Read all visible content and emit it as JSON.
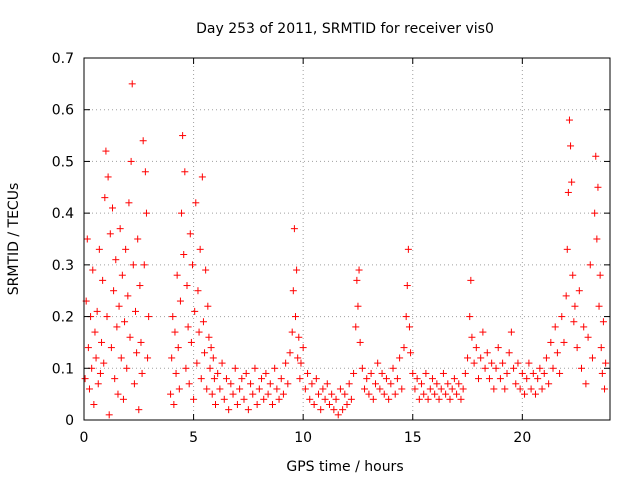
{
  "chart_data": {
    "type": "scatter",
    "title": "Day 253 of 2011, SRMTID for receiver vis0",
    "xlabel": "GPS time / hours",
    "ylabel": "SRMTID / TECUs",
    "xlim": [
      0,
      24
    ],
    "ylim": [
      0,
      0.7
    ],
    "x_ticks": [
      0,
      5,
      10,
      15,
      20
    ],
    "y_ticks": [
      0,
      0.1,
      0.2,
      0.3,
      0.4,
      0.5,
      0.6,
      0.7
    ],
    "x_tick_labels": [
      "0",
      "5",
      "10",
      "15",
      "20"
    ],
    "y_tick_labels": [
      "0",
      "0.1",
      "0.2",
      "0.3",
      "0.4",
      "0.5",
      "0.6",
      "0.7"
    ],
    "grid": true,
    "marker": "plus",
    "series": [
      {
        "name": "vis0",
        "color": "#ff0000",
        "points": [
          [
            0.05,
            0.08
          ],
          [
            0.1,
            0.23
          ],
          [
            0.15,
            0.35
          ],
          [
            0.2,
            0.14
          ],
          [
            0.25,
            0.06
          ],
          [
            0.3,
            0.2
          ],
          [
            0.35,
            0.1
          ],
          [
            0.4,
            0.29
          ],
          [
            0.45,
            0.03
          ],
          [
            0.5,
            0.17
          ],
          [
            0.55,
            0.12
          ],
          [
            0.6,
            0.21
          ],
          [
            0.65,
            0.07
          ],
          [
            0.7,
            0.33
          ],
          [
            0.75,
            0.09
          ],
          [
            0.8,
            0.15
          ],
          [
            0.85,
            0.27
          ],
          [
            0.9,
            0.11
          ],
          [
            0.95,
            0.43
          ],
          [
            1.0,
            0.52
          ],
          [
            1.05,
            0.2
          ],
          [
            1.1,
            0.47
          ],
          [
            1.15,
            0.01
          ],
          [
            1.2,
            0.36
          ],
          [
            1.25,
            0.14
          ],
          [
            1.3,
            0.41
          ],
          [
            1.35,
            0.25
          ],
          [
            1.4,
            0.08
          ],
          [
            1.45,
            0.31
          ],
          [
            1.5,
            0.18
          ],
          [
            1.55,
            0.05
          ],
          [
            1.6,
            0.22
          ],
          [
            1.65,
            0.37
          ],
          [
            1.7,
            0.12
          ],
          [
            1.75,
            0.28
          ],
          [
            1.8,
            0.04
          ],
          [
            1.85,
            0.19
          ],
          [
            1.9,
            0.33
          ],
          [
            1.95,
            0.1
          ],
          [
            2.0,
            0.24
          ],
          [
            2.05,
            0.42
          ],
          [
            2.1,
            0.16
          ],
          [
            2.15,
            0.5
          ],
          [
            2.2,
            0.65
          ],
          [
            2.25,
            0.3
          ],
          [
            2.3,
            0.07
          ],
          [
            2.35,
            0.21
          ],
          [
            2.4,
            0.13
          ],
          [
            2.45,
            0.35
          ],
          [
            2.5,
            0.02
          ],
          [
            2.55,
            0.26
          ],
          [
            2.6,
            0.15
          ],
          [
            2.65,
            0.09
          ],
          [
            2.7,
            0.54
          ],
          [
            2.75,
            0.3
          ],
          [
            2.8,
            0.48
          ],
          [
            2.85,
            0.4
          ],
          [
            2.9,
            0.12
          ],
          [
            2.95,
            0.2
          ],
          [
            3.95,
            0.05
          ],
          [
            4.0,
            0.12
          ],
          [
            4.05,
            0.2
          ],
          [
            4.1,
            0.03
          ],
          [
            4.15,
            0.17
          ],
          [
            4.2,
            0.09
          ],
          [
            4.25,
            0.28
          ],
          [
            4.3,
            0.14
          ],
          [
            4.35,
            0.06
          ],
          [
            4.4,
            0.23
          ],
          [
            4.45,
            0.4
          ],
          [
            4.5,
            0.55
          ],
          [
            4.55,
            0.32
          ],
          [
            4.6,
            0.48
          ],
          [
            4.65,
            0.1
          ],
          [
            4.7,
            0.26
          ],
          [
            4.75,
            0.18
          ],
          [
            4.8,
            0.07
          ],
          [
            4.85,
            0.36
          ],
          [
            4.9,
            0.15
          ],
          [
            4.95,
            0.3
          ],
          [
            5.0,
            0.04
          ],
          [
            5.05,
            0.21
          ],
          [
            5.1,
            0.42
          ],
          [
            5.15,
            0.11
          ],
          [
            5.2,
            0.25
          ],
          [
            5.25,
            0.17
          ],
          [
            5.3,
            0.33
          ],
          [
            5.35,
            0.08
          ],
          [
            5.4,
            0.47
          ],
          [
            5.45,
            0.19
          ],
          [
            5.5,
            0.13
          ],
          [
            5.55,
            0.29
          ],
          [
            5.6,
            0.06
          ],
          [
            5.65,
            0.22
          ],
          [
            5.7,
            0.16
          ],
          [
            5.75,
            0.1
          ],
          [
            5.8,
            0.14
          ],
          [
            5.85,
            0.05
          ],
          [
            5.9,
            0.12
          ],
          [
            5.95,
            0.08
          ],
          [
            6.0,
            0.03
          ],
          [
            6.1,
            0.09
          ],
          [
            6.2,
            0.06
          ],
          [
            6.3,
            0.11
          ],
          [
            6.4,
            0.04
          ],
          [
            6.5,
            0.08
          ],
          [
            6.6,
            0.02
          ],
          [
            6.7,
            0.07
          ],
          [
            6.8,
            0.05
          ],
          [
            6.9,
            0.1
          ],
          [
            7.0,
            0.03
          ],
          [
            7.1,
            0.06
          ],
          [
            7.2,
            0.08
          ],
          [
            7.3,
            0.04
          ],
          [
            7.4,
            0.09
          ],
          [
            7.5,
            0.02
          ],
          [
            7.6,
            0.07
          ],
          [
            7.7,
            0.05
          ],
          [
            7.8,
            0.1
          ],
          [
            7.9,
            0.03
          ],
          [
            8.0,
            0.06
          ],
          [
            8.1,
            0.08
          ],
          [
            8.2,
            0.04
          ],
          [
            8.3,
            0.09
          ],
          [
            8.4,
            0.05
          ],
          [
            8.5,
            0.07
          ],
          [
            8.6,
            0.03
          ],
          [
            8.7,
            0.1
          ],
          [
            8.8,
            0.06
          ],
          [
            8.9,
            0.04
          ],
          [
            9.0,
            0.08
          ],
          [
            9.1,
            0.05
          ],
          [
            9.2,
            0.11
          ],
          [
            9.3,
            0.07
          ],
          [
            9.4,
            0.13
          ],
          [
            9.5,
            0.17
          ],
          [
            9.55,
            0.25
          ],
          [
            9.6,
            0.37
          ],
          [
            9.65,
            0.2
          ],
          [
            9.7,
            0.29
          ],
          [
            9.75,
            0.12
          ],
          [
            9.8,
            0.16
          ],
          [
            9.85,
            0.08
          ],
          [
            9.9,
            0.11
          ],
          [
            10.0,
            0.14
          ],
          [
            10.1,
            0.06
          ],
          [
            10.2,
            0.09
          ],
          [
            10.3,
            0.04
          ],
          [
            10.4,
            0.07
          ],
          [
            10.5,
            0.03
          ],
          [
            10.6,
            0.08
          ],
          [
            10.7,
            0.05
          ],
          [
            10.8,
            0.02
          ],
          [
            10.9,
            0.06
          ],
          [
            11.0,
            0.04
          ],
          [
            11.1,
            0.07
          ],
          [
            11.2,
            0.03
          ],
          [
            11.3,
            0.05
          ],
          [
            11.4,
            0.02
          ],
          [
            11.5,
            0.04
          ],
          [
            11.6,
            0.01
          ],
          [
            11.7,
            0.06
          ],
          [
            11.8,
            0.02
          ],
          [
            11.9,
            0.05
          ],
          [
            12.0,
            0.03
          ],
          [
            12.1,
            0.07
          ],
          [
            12.2,
            0.04
          ],
          [
            12.3,
            0.09
          ],
          [
            12.4,
            0.18
          ],
          [
            12.45,
            0.27
          ],
          [
            12.5,
            0.22
          ],
          [
            12.55,
            0.29
          ],
          [
            12.6,
            0.15
          ],
          [
            12.7,
            0.1
          ],
          [
            12.8,
            0.06
          ],
          [
            12.9,
            0.08
          ],
          [
            13.0,
            0.05
          ],
          [
            13.1,
            0.09
          ],
          [
            13.2,
            0.04
          ],
          [
            13.3,
            0.07
          ],
          [
            13.4,
            0.11
          ],
          [
            13.5,
            0.06
          ],
          [
            13.6,
            0.09
          ],
          [
            13.7,
            0.05
          ],
          [
            13.8,
            0.08
          ],
          [
            13.9,
            0.04
          ],
          [
            14.0,
            0.07
          ],
          [
            14.1,
            0.1
          ],
          [
            14.2,
            0.05
          ],
          [
            14.3,
            0.08
          ],
          [
            14.4,
            0.12
          ],
          [
            14.5,
            0.06
          ],
          [
            14.6,
            0.14
          ],
          [
            14.7,
            0.2
          ],
          [
            14.75,
            0.26
          ],
          [
            14.8,
            0.33
          ],
          [
            14.85,
            0.18
          ],
          [
            14.9,
            0.13
          ],
          [
            15.0,
            0.09
          ],
          [
            15.1,
            0.06
          ],
          [
            15.2,
            0.08
          ],
          [
            15.3,
            0.04
          ],
          [
            15.4,
            0.07
          ],
          [
            15.5,
            0.05
          ],
          [
            15.6,
            0.09
          ],
          [
            15.7,
            0.04
          ],
          [
            15.8,
            0.06
          ],
          [
            15.9,
            0.08
          ],
          [
            16.0,
            0.05
          ],
          [
            16.1,
            0.07
          ],
          [
            16.2,
            0.04
          ],
          [
            16.3,
            0.06
          ],
          [
            16.4,
            0.09
          ],
          [
            16.5,
            0.05
          ],
          [
            16.6,
            0.07
          ],
          [
            16.7,
            0.04
          ],
          [
            16.8,
            0.06
          ],
          [
            16.9,
            0.08
          ],
          [
            17.0,
            0.05
          ],
          [
            17.1,
            0.07
          ],
          [
            17.2,
            0.04
          ],
          [
            17.3,
            0.06
          ],
          [
            17.4,
            0.09
          ],
          [
            17.5,
            0.12
          ],
          [
            17.6,
            0.2
          ],
          [
            17.65,
            0.27
          ],
          [
            17.7,
            0.16
          ],
          [
            17.8,
            0.11
          ],
          [
            17.9,
            0.14
          ],
          [
            18.0,
            0.08
          ],
          [
            18.1,
            0.12
          ],
          [
            18.2,
            0.17
          ],
          [
            18.3,
            0.1
          ],
          [
            18.4,
            0.13
          ],
          [
            18.5,
            0.08
          ],
          [
            18.6,
            0.11
          ],
          [
            18.7,
            0.06
          ],
          [
            18.8,
            0.1
          ],
          [
            18.9,
            0.14
          ],
          [
            19.0,
            0.08
          ],
          [
            19.1,
            0.11
          ],
          [
            19.2,
            0.06
          ],
          [
            19.3,
            0.09
          ],
          [
            19.4,
            0.13
          ],
          [
            19.5,
            0.17
          ],
          [
            19.6,
            0.1
          ],
          [
            19.7,
            0.07
          ],
          [
            19.8,
            0.11
          ],
          [
            19.9,
            0.06
          ],
          [
            20.0,
            0.09
          ],
          [
            20.1,
            0.05
          ],
          [
            20.2,
            0.08
          ],
          [
            20.3,
            0.11
          ],
          [
            20.4,
            0.06
          ],
          [
            20.5,
            0.09
          ],
          [
            20.6,
            0.05
          ],
          [
            20.7,
            0.08
          ],
          [
            20.8,
            0.1
          ],
          [
            20.9,
            0.06
          ],
          [
            21.0,
            0.09
          ],
          [
            21.1,
            0.12
          ],
          [
            21.2,
            0.07
          ],
          [
            21.3,
            0.15
          ],
          [
            21.4,
            0.1
          ],
          [
            21.5,
            0.18
          ],
          [
            21.6,
            0.13
          ],
          [
            21.7,
            0.09
          ],
          [
            21.8,
            0.2
          ],
          [
            21.9,
            0.15
          ],
          [
            22.0,
            0.24
          ],
          [
            22.05,
            0.33
          ],
          [
            22.1,
            0.44
          ],
          [
            22.15,
            0.58
          ],
          [
            22.2,
            0.53
          ],
          [
            22.25,
            0.46
          ],
          [
            22.3,
            0.28
          ],
          [
            22.35,
            0.19
          ],
          [
            22.4,
            0.22
          ],
          [
            22.5,
            0.14
          ],
          [
            22.6,
            0.25
          ],
          [
            22.7,
            0.1
          ],
          [
            22.8,
            0.18
          ],
          [
            22.9,
            0.07
          ],
          [
            23.0,
            0.16
          ],
          [
            23.1,
            0.3
          ],
          [
            23.2,
            0.12
          ],
          [
            23.3,
            0.4
          ],
          [
            23.35,
            0.51
          ],
          [
            23.4,
            0.35
          ],
          [
            23.45,
            0.45
          ],
          [
            23.5,
            0.22
          ],
          [
            23.55,
            0.28
          ],
          [
            23.6,
            0.14
          ],
          [
            23.65,
            0.09
          ],
          [
            23.7,
            0.19
          ],
          [
            23.75,
            0.06
          ],
          [
            23.8,
            0.11
          ]
        ]
      }
    ]
  }
}
